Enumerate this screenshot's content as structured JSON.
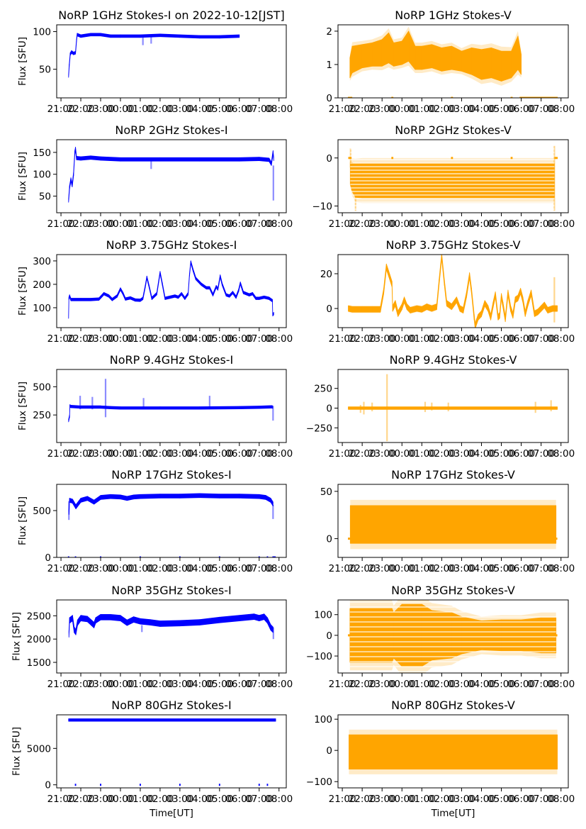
{
  "chart_data": [
    {
      "title": "NoRP 1GHz Stokes-I on 2022-10-12[JST]",
      "type": "scatter",
      "ylabel": "Flux [SFU]",
      "color": "#0000ff",
      "ylim": [
        12,
        109
      ],
      "yticks": [
        50,
        100
      ],
      "ytick_labels": [
        "50",
        "100"
      ],
      "x": [
        "21:23",
        "21:25",
        "21:28",
        "21:32",
        "21:38",
        "21:44",
        "21:47",
        "21:49",
        "22:00",
        "22:30",
        "23:00",
        "23:30",
        "00:00",
        "01:00",
        "02:00",
        "03:00",
        "04:00",
        "05:00",
        "06:00"
      ],
      "y": [
        41,
        55,
        70,
        73,
        71,
        72,
        88,
        96,
        94,
        96,
        96,
        94,
        94,
        94,
        95,
        94,
        93,
        93,
        94
      ],
      "spread": 1.8,
      "spikes": [
        {
          "x": "01:08",
          "lo": 82,
          "hi": 92
        },
        {
          "x": "01:33",
          "lo": 84,
          "hi": 93
        }
      ],
      "zero_marks": []
    },
    {
      "title": "NoRP 1GHz Stokes-V",
      "type": "scatter",
      "ylabel": "",
      "color": "#ffa500",
      "ylim": [
        0,
        2.19
      ],
      "yticks": [
        0,
        1,
        2
      ],
      "ytick_labels": [
        "0",
        "1",
        "2"
      ],
      "x": [
        "21:23",
        "21:30",
        "22:00",
        "22:30",
        "23:00",
        "23:20",
        "23:35",
        "00:00",
        "00:20",
        "00:40",
        "01:00",
        "01:30",
        "02:00",
        "02:30",
        "03:00",
        "03:30",
        "04:00",
        "04:30",
        "05:00",
        "05:30",
        "05:50",
        "06:00"
      ],
      "y": [
        0.9,
        1.15,
        1.25,
        1.3,
        1.35,
        1.5,
        1.3,
        1.35,
        1.55,
        1.2,
        1.2,
        1.25,
        1.15,
        1.2,
        1.1,
        1.1,
        1.0,
        1.05,
        0.95,
        1.0,
        1.35,
        1.0
      ],
      "spread": [
        0.3,
        0.4,
        0.35,
        0.35,
        0.4,
        0.45,
        0.35,
        0.35,
        0.45,
        0.35,
        0.35,
        0.35,
        0.35,
        0.35,
        0.3,
        0.4,
        0.45,
        0.45,
        0.45,
        0.4,
        0.5,
        0.3
      ],
      "spikes": [],
      "zero_marks": [
        [
          "21:17",
          "21:30"
        ],
        [
          "23:28",
          "23:34"
        ],
        [
          "02:28",
          "02:34"
        ],
        [
          "05:28",
          "05:34"
        ],
        [
          "05:55",
          "07:50"
        ]
      ]
    },
    {
      "title": "NoRP 2GHz Stokes-I",
      "type": "scatter",
      "ylabel": "Flux [SFU]",
      "color": "#0000ff",
      "ylim": [
        12,
        179
      ],
      "yticks": [
        50,
        100,
        150
      ],
      "ytick_labels": [
        "50",
        "100",
        "150"
      ],
      "x": [
        "21:23",
        "21:26",
        "21:30",
        "21:34",
        "21:38",
        "21:42",
        "21:44",
        "21:47",
        "22:00",
        "22:30",
        "23:00",
        "00:00",
        "02:00",
        "04:00",
        "06:00",
        "07:00",
        "07:30",
        "07:37",
        "07:40",
        "07:42",
        "07:44"
      ],
      "y": [
        40,
        70,
        88,
        75,
        100,
        150,
        158,
        137,
        136,
        138,
        136,
        134,
        134,
        134,
        134,
        135,
        133,
        124,
        140,
        150,
        135
      ],
      "spread": 4,
      "spikes": [
        {
          "x": "01:33",
          "lo": 112,
          "hi": 130
        },
        {
          "x": "07:43",
          "lo": 40,
          "hi": 120
        }
      ],
      "zero_marks": []
    },
    {
      "title": "NoRP 2GHz Stokes-V",
      "type": "scatter",
      "ylabel": "",
      "color": "#ffa500",
      "ylim": [
        -11.4,
        3.8
      ],
      "yticks": [
        -10,
        0
      ],
      "ytick_labels": [
        "−10",
        "0"
      ],
      "x": [
        "21:24",
        "21:30",
        "21:40",
        "22:00",
        "04:00",
        "07:30",
        "07:40"
      ],
      "y": [
        -3.2,
        -4,
        -4.7,
        -4.7,
        -4.7,
        -4.7,
        -4.7
      ],
      "spread": [
        2.3,
        3,
        3.5,
        3.6,
        3.6,
        3.6,
        3.6
      ],
      "spikes": [
        {
          "x": "21:25",
          "lo": -2,
          "hi": 2
        },
        {
          "x": "21:40",
          "lo": -11,
          "hi": -8
        },
        {
          "x": "07:40",
          "lo": -11,
          "hi": 2.5
        }
      ],
      "zero_marks": [
        [
          "21:18",
          "21:28"
        ],
        [
          "23:28",
          "23:34"
        ],
        [
          "02:28",
          "02:34"
        ],
        [
          "05:28",
          "05:34"
        ],
        [
          "07:40",
          "07:50"
        ]
      ]
    },
    {
      "title": "NoRP 3.75GHz Stokes-I",
      "type": "scatter",
      "ylabel": "Flux [SFU]",
      "color": "#0000ff",
      "ylim": [
        15,
        327
      ],
      "yticks": [
        100,
        200,
        300
      ],
      "ytick_labels": [
        "100",
        "200",
        "300"
      ],
      "x": [
        "21:23",
        "21:24",
        "21:26",
        "21:30",
        "22:00",
        "22:30",
        "22:55",
        "23:10",
        "23:25",
        "23:35",
        "23:50",
        "00:00",
        "00:08",
        "00:15",
        "00:30",
        "00:45",
        "01:00",
        "01:08",
        "01:15",
        "01:20",
        "01:27",
        "01:35",
        "01:50",
        "02:00",
        "02:07",
        "02:15",
        "02:30",
        "02:45",
        "02:55",
        "03:05",
        "03:15",
        "03:25",
        "03:29",
        "03:33",
        "03:40",
        "03:48",
        "04:05",
        "04:20",
        "04:30",
        "04:40",
        "04:50",
        "04:55",
        "05:02",
        "05:08",
        "05:20",
        "05:30",
        "05:40",
        "05:50",
        "05:58",
        "06:03",
        "06:12",
        "06:30",
        "06:40",
        "06:50",
        "07:00",
        "07:15",
        "07:30",
        "07:40",
        "07:41",
        "07:44"
      ],
      "y": [
        60,
        140,
        150,
        135,
        135,
        135,
        137,
        160,
        150,
        135,
        150,
        180,
        160,
        137,
        142,
        133,
        132,
        140,
        190,
        230,
        190,
        140,
        160,
        250,
        200,
        140,
        145,
        150,
        145,
        160,
        140,
        160,
        240,
        295,
        260,
        225,
        200,
        185,
        185,
        155,
        190,
        180,
        235,
        200,
        155,
        150,
        165,
        145,
        175,
        205,
        165,
        155,
        160,
        140,
        140,
        145,
        140,
        130,
        70,
        75
      ],
      "spread": 4,
      "spikes": [],
      "zero_marks": []
    },
    {
      "title": "NoRP 3.75GHz Stokes-V",
      "type": "scatter",
      "ylabel": "",
      "color": "#ffa500",
      "ylim": [
        -11,
        31
      ],
      "yticks": [
        0,
        20
      ],
      "ytick_labels": [
        "0",
        "20"
      ],
      "x": [
        "21:18",
        "21:30",
        "22:00",
        "22:30",
        "22:55",
        "23:05",
        "23:13",
        "23:20",
        "23:30",
        "23:32",
        "23:40",
        "23:48",
        "00:00",
        "00:07",
        "00:15",
        "00:25",
        "00:45",
        "01:00",
        "01:15",
        "01:30",
        "01:45",
        "01:52",
        "02:00",
        "02:08",
        "02:15",
        "02:30",
        "02:45",
        "02:55",
        "03:05",
        "03:15",
        "03:24",
        "03:30",
        "03:38",
        "03:41",
        "03:50",
        "04:00",
        "04:10",
        "04:20",
        "04:28",
        "04:35",
        "04:42",
        "04:50",
        "04:55",
        "05:00",
        "05:05",
        "05:12",
        "05:20",
        "05:28",
        "05:35",
        "05:42",
        "05:50",
        "05:58",
        "06:05",
        "06:12",
        "06:20",
        "06:30",
        "06:40",
        "06:50",
        "07:00",
        "07:10",
        "07:20",
        "07:35",
        "07:49"
      ],
      "y": [
        0,
        -0.5,
        -0.5,
        -0.5,
        -0.5,
        10,
        24,
        20,
        14,
        0,
        3,
        -3,
        1,
        5,
        1,
        -1,
        0,
        -0.5,
        1,
        0,
        1,
        15,
        30,
        15,
        3,
        1,
        5,
        0,
        -1,
        8,
        19,
        10,
        -5,
        -10,
        -5,
        -3,
        3,
        0,
        -5,
        2,
        8,
        -5,
        -4,
        7,
        2,
        -6,
        9,
        0,
        -4,
        5,
        6,
        10,
        5,
        -3,
        3,
        9,
        -3,
        -2,
        0,
        2,
        -1,
        0,
        0
      ],
      "spread": 1.6,
      "spikes": [
        {
          "x": "07:40",
          "lo": -8,
          "hi": 18
        }
      ],
      "zero_marks": []
    },
    {
      "title": "NoRP 9.4GHz Stokes-I",
      "type": "scatter",
      "ylabel": "Flux [SFU]",
      "color": "#0000ff",
      "ylim": [
        6,
        653
      ],
      "yticks": [
        250,
        500
      ],
      "ytick_labels": [
        "250",
        "500"
      ],
      "x": [
        "21:23",
        "21:26",
        "21:27",
        "21:30",
        "22:00",
        "23:00",
        "23:30",
        "00:00",
        "02:00",
        "04:00",
        "06:00",
        "07:00",
        "07:38",
        "07:41"
      ],
      "y": [
        200,
        240,
        330,
        325,
        320,
        320,
        315,
        312,
        312,
        312,
        315,
        318,
        322,
        320
      ],
      "spread": 10,
      "spikes": [
        {
          "x": "23:15",
          "lo": 230,
          "hi": 570
        },
        {
          "x": "21:58",
          "lo": 300,
          "hi": 420
        },
        {
          "x": "22:35",
          "lo": 300,
          "hi": 410
        },
        {
          "x": "01:10",
          "lo": 300,
          "hi": 400
        },
        {
          "x": "04:30",
          "lo": 300,
          "hi": 420
        },
        {
          "x": "07:42",
          "lo": 200,
          "hi": 330
        }
      ],
      "zero_marks": []
    },
    {
      "title": "NoRP 9.4GHz Stokes-V",
      "type": "scatter",
      "ylabel": "",
      "color": "#ffa500",
      "ylim": [
        -436,
        490
      ],
      "yticks": [
        -250,
        0,
        250
      ],
      "ytick_labels": [
        "−250",
        "0",
        "250"
      ],
      "x": [
        "21:18",
        "07:49"
      ],
      "y": [
        0,
        0
      ],
      "spread": 8,
      "spikes": [
        {
          "x": "23:15",
          "lo": -420,
          "hi": 430
        },
        {
          "x": "21:55",
          "lo": -60,
          "hi": 40
        },
        {
          "x": "22:05",
          "lo": -80,
          "hi": 80
        },
        {
          "x": "22:30",
          "lo": -40,
          "hi": 70
        },
        {
          "x": "01:10",
          "lo": -50,
          "hi": 80
        },
        {
          "x": "01:30",
          "lo": -30,
          "hi": 70
        },
        {
          "x": "02:20",
          "lo": -40,
          "hi": 70
        },
        {
          "x": "06:43",
          "lo": -60,
          "hi": 80
        },
        {
          "x": "07:30",
          "lo": -40,
          "hi": 100
        }
      ],
      "zero_marks": []
    },
    {
      "title": "NoRP 17GHz Stokes-I",
      "type": "scatter",
      "ylabel": "Flux [SFU]",
      "color": "#0000ff",
      "ylim": [
        0,
        780
      ],
      "yticks": [
        0,
        500
      ],
      "ytick_labels": [
        "0",
        "500"
      ],
      "x": [
        "21:24",
        "21:26",
        "21:35",
        "21:45",
        "22:00",
        "22:20",
        "22:40",
        "23:00",
        "23:30",
        "00:00",
        "00:20",
        "00:40",
        "01:00",
        "02:00",
        "03:00",
        "04:00",
        "05:00",
        "06:00",
        "07:00",
        "07:20",
        "07:35",
        "07:42"
      ],
      "y": [
        480,
        610,
        600,
        540,
        610,
        630,
        590,
        640,
        650,
        645,
        630,
        645,
        650,
        655,
        655,
        660,
        655,
        655,
        650,
        640,
        610,
        570
      ],
      "spread": 22,
      "spikes": [
        {
          "x": "21:24",
          "lo": 400,
          "hi": 600
        },
        {
          "x": "07:42",
          "lo": 410,
          "hi": 560
        }
      ],
      "zero_marks": [
        [
          "21:21",
          "21:25"
        ],
        [
          "21:42",
          "21:46"
        ],
        [
          "22:58",
          "23:02"
        ],
        [
          "00:58",
          "01:02"
        ],
        [
          "02:58",
          "03:02"
        ],
        [
          "04:58",
          "05:02"
        ],
        [
          "06:58",
          "07:02"
        ],
        [
          "07:23",
          "07:27"
        ],
        [
          "07:40",
          "07:50"
        ]
      ]
    },
    {
      "title": "NoRP 17GHz Stokes-V",
      "type": "scatter",
      "ylabel": "",
      "color": "#ffa500",
      "ylim": [
        -19.8,
        57.4
      ],
      "yticks": [
        0,
        50
      ],
      "ytick_labels": [
        "0",
        "50"
      ],
      "x": [
        "21:24",
        "07:45"
      ],
      "y": [
        15,
        15
      ],
      "spread": 20,
      "spikes": [],
      "zero_marks": [
        [
          "21:17",
          "21:24"
        ],
        [
          "07:45",
          "07:49"
        ]
      ]
    },
    {
      "title": "NoRP 35GHz Stokes-I",
      "type": "scatter",
      "ylabel": "Flux [SFU]",
      "color": "#0000ff",
      "ylim": [
        1272,
        2840
      ],
      "yticks": [
        1500,
        2000,
        2500
      ],
      "ytick_labels": [
        "1500",
        "2000",
        "2500"
      ],
      "x": [
        "21:24",
        "21:26",
        "21:35",
        "21:40",
        "21:45",
        "21:50",
        "22:00",
        "22:20",
        "22:40",
        "22:45",
        "23:00",
        "23:30",
        "00:00",
        "00:20",
        "00:40",
        "01:00",
        "01:30",
        "02:00",
        "03:00",
        "04:00",
        "05:00",
        "06:00",
        "06:45",
        "07:00",
        "07:15",
        "07:25",
        "07:35",
        "07:42"
      ],
      "y": [
        2100,
        2400,
        2450,
        2200,
        2150,
        2350,
        2450,
        2430,
        2300,
        2400,
        2470,
        2470,
        2450,
        2350,
        2420,
        2380,
        2360,
        2330,
        2340,
        2360,
        2410,
        2450,
        2480,
        2450,
        2480,
        2400,
        2250,
        2200
      ],
      "spread": 60,
      "spikes": [
        {
          "x": "01:05",
          "lo": 2150,
          "hi": 2300
        },
        {
          "x": "07:43",
          "lo": 2000,
          "hi": 2250
        }
      ],
      "zero_marks": []
    },
    {
      "title": "NoRP 35GHz Stokes-V",
      "type": "scatter",
      "ylabel": "",
      "color": "#ffa500",
      "ylim": [
        -182,
        171
      ],
      "yticks": [
        -100,
        0,
        100
      ],
      "ytick_labels": [
        "−100",
        "0",
        "100"
      ],
      "x": [
        "21:23",
        "23:30",
        "23:35",
        "00:00",
        "01:00",
        "01:30",
        "02:30",
        "03:00",
        "04:00",
        "05:00",
        "06:00",
        "07:00",
        "07:45"
      ],
      "y": [
        0,
        0,
        0,
        0,
        0,
        0,
        0,
        0,
        0,
        0,
        0,
        0,
        0
      ],
      "spread": [
        130,
        130,
        110,
        150,
        150,
        120,
        110,
        90,
        70,
        75,
        75,
        85,
        85
      ],
      "spikes": [],
      "zero_marks": [
        [
          "21:17",
          "21:24"
        ],
        [
          "07:45",
          "07:49"
        ]
      ]
    },
    {
      "title": "NoRP 80GHz Stokes-I",
      "type": "scatter",
      "ylabel": "Flux [SFU]",
      "xlabel": "Time[UT]",
      "color": "#0000ff",
      "ylim": [
        -420,
        9610
      ],
      "yticks": [
        0,
        5000
      ],
      "ytick_labels": [
        "0",
        "5000"
      ],
      "x": [
        "21:23",
        "07:50"
      ],
      "y": [
        8900,
        8900
      ],
      "spread": 80,
      "spikes": [],
      "zero_marks": [
        [
          "21:42",
          "21:46"
        ],
        [
          "22:58",
          "23:02"
        ],
        [
          "00:58",
          "01:02"
        ],
        [
          "02:58",
          "03:02"
        ],
        [
          "04:58",
          "05:02"
        ],
        [
          "06:58",
          "07:02"
        ],
        [
          "07:23",
          "07:27"
        ]
      ]
    },
    {
      "title": "NoRP 80GHz Stokes-V",
      "type": "scatter",
      "ylabel": "",
      "xlabel": "Time[UT]",
      "color": "#ffa500",
      "ylim": [
        -120,
        114
      ],
      "yticks": [
        -100,
        0,
        100
      ],
      "ytick_labels": [
        "−100",
        "0",
        "100"
      ],
      "x": [
        "21:20",
        "07:49"
      ],
      "y": [
        -5,
        -5
      ],
      "spread": 55,
      "spikes": [],
      "zero_marks": []
    }
  ],
  "x_axis": {
    "xlim": [
      "20:47",
      "08:22"
    ],
    "ticks": [
      "21:00",
      "22:00",
      "23:00",
      "00:00",
      "01:00",
      "02:00",
      "03:00",
      "04:00",
      "05:00",
      "06:00",
      "07:00",
      "08:00"
    ]
  }
}
